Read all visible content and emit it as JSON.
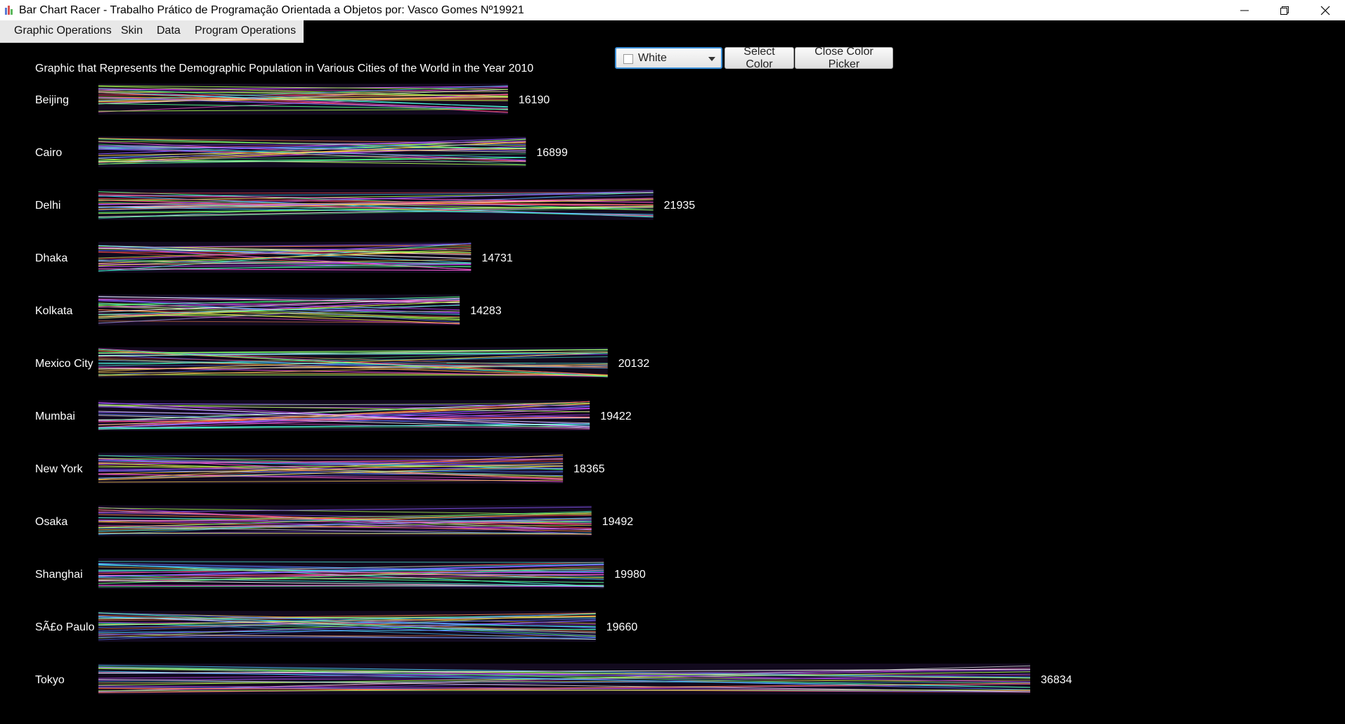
{
  "window": {
    "title": "Bar Chart Racer - Trabalho Prático de Programação Orientada a Objetos por: Vasco Gomes Nº19921",
    "icon": "bar-chart-icon"
  },
  "menu": {
    "items": [
      "Graphic Operations",
      "Skin",
      "Data",
      "Program Operations"
    ]
  },
  "color_picker": {
    "selected": "White",
    "swatch_color": "#ffffff",
    "select_label": "Select Color",
    "close_label": "Close Color Picker"
  },
  "chart_data": {
    "type": "bar",
    "orientation": "horizontal",
    "title": "Graphic that Represents the Demographic Population in Various Cities of the World in the Year 2010",
    "categories": [
      "Beijing",
      "Cairo",
      "Delhi",
      "Dhaka",
      "Kolkata",
      "Mexico City",
      "Mumbai",
      "New York",
      "Osaka",
      "Shanghai",
      "SÃ£o Paulo",
      "Tokyo"
    ],
    "values": [
      16190,
      16899,
      21935,
      14731,
      14283,
      20132,
      19422,
      18365,
      19492,
      19980,
      19660,
      36834
    ],
    "xlabel": "",
    "ylabel": "",
    "grid": false,
    "background": "#000000",
    "label_color": "#ffffff"
  }
}
